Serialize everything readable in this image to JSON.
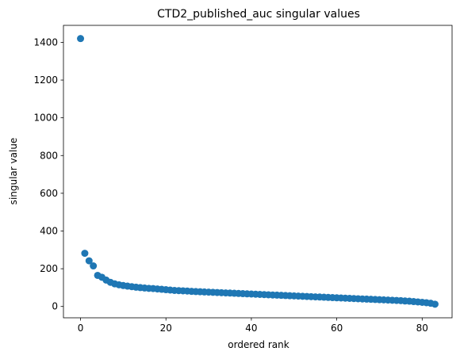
{
  "chart_data": {
    "type": "scatter",
    "title": "CTD2_published_auc singular values",
    "xlabel": "ordered rank",
    "ylabel": "singular value",
    "xlim": [
      -4,
      87
    ],
    "ylim": [
      -60,
      1490
    ],
    "xticks": [
      0,
      20,
      40,
      60,
      80
    ],
    "yticks": [
      0,
      200,
      400,
      600,
      800,
      1000,
      1200,
      1400
    ],
    "grid": false,
    "color": "#1f77b4",
    "series": [
      {
        "x": [
          0,
          1,
          2,
          3,
          4,
          5,
          6,
          7,
          8,
          9,
          10,
          11,
          12,
          13,
          14,
          15,
          16,
          17,
          18,
          19,
          20,
          21,
          22,
          23,
          24,
          25,
          26,
          27,
          28,
          29,
          30,
          31,
          32,
          33,
          34,
          35,
          36,
          37,
          38,
          39,
          40,
          41,
          42,
          43,
          44,
          45,
          46,
          47,
          48,
          49,
          50,
          51,
          52,
          53,
          54,
          55,
          56,
          57,
          58,
          59,
          60,
          61,
          62,
          63,
          64,
          65,
          66,
          67,
          68,
          69,
          70,
          71,
          72,
          73,
          74,
          75,
          76,
          77,
          78,
          79,
          80,
          81,
          82,
          83
        ],
        "y": [
          1420,
          282,
          242,
          215,
          165,
          155,
          140,
          128,
          120,
          115,
          111,
          108,
          105,
          102,
          100,
          98,
          96,
          95,
          93,
          91,
          89,
          87,
          85,
          84,
          83,
          82,
          80,
          79,
          78,
          77,
          76,
          75,
          74,
          73,
          72,
          71,
          70,
          69,
          68,
          67,
          66,
          65,
          64,
          63,
          62,
          61,
          60,
          59,
          58,
          57,
          56,
          55,
          54,
          53,
          52,
          51,
          50,
          49,
          48,
          47,
          46,
          45,
          44,
          43,
          42,
          41,
          40,
          39,
          38,
          37,
          36,
          35,
          34,
          33,
          32,
          31,
          29,
          28,
          26,
          24,
          22,
          20,
          17,
          12
        ]
      }
    ]
  }
}
